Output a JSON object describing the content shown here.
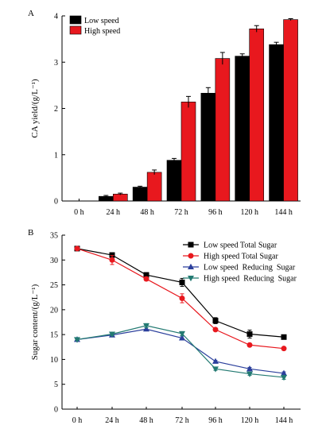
{
  "chart_data": [
    {
      "type": "bar",
      "panel_label": "A",
      "categories": [
        "0 h",
        "24 h",
        "48 h",
        "72 h",
        "96 h",
        "120 h",
        "144 h"
      ],
      "ylabel": "CA yield/(g/L⁻¹)",
      "ylim": [
        0,
        4
      ],
      "yticks": [
        "0",
        "1",
        "2",
        "3",
        "4"
      ],
      "legend_position": "top-left",
      "series": [
        {
          "name": "Low speed",
          "color": "#000000",
          "values": [
            0,
            0.1,
            0.3,
            0.88,
            2.33,
            3.13,
            3.38
          ],
          "errors": [
            0,
            0.02,
            0.02,
            0.04,
            0.12,
            0.05,
            0.05
          ]
        },
        {
          "name": "High speed",
          "color": "#e8181e",
          "values": [
            0,
            0.15,
            0.62,
            2.14,
            3.08,
            3.72,
            3.92
          ],
          "errors": [
            0,
            0.02,
            0.05,
            0.12,
            0.13,
            0.07,
            0.02
          ]
        }
      ]
    },
    {
      "type": "line",
      "panel_label": "B",
      "categories": [
        "0 h",
        "24 h",
        "48 h",
        "72 h",
        "96 h",
        "120 h",
        "144 h"
      ],
      "ylabel": "Sugar content/(g/L⁻¹)",
      "ylim": [
        0,
        35
      ],
      "yticks": [
        "0",
        "5",
        "10",
        "15",
        "20",
        "25",
        "30",
        "35"
      ],
      "legend_position": "top-right",
      "series": [
        {
          "name": "Low speed Total Sugar",
          "color": "#000000",
          "marker": "square",
          "values": [
            32.3,
            31.0,
            27.0,
            25.5,
            17.8,
            15.1,
            14.5
          ],
          "errors": [
            0.3,
            0.3,
            0.4,
            0.8,
            0.6,
            0.8,
            0.4
          ]
        },
        {
          "name": "High speed Total Sugar",
          "color": "#e8181e",
          "marker": "circle",
          "values": [
            32.3,
            30.0,
            26.2,
            22.3,
            16.0,
            12.9,
            12.2
          ],
          "errors": [
            0.3,
            0.9,
            0.4,
            0.9,
            0.3,
            0.2,
            0.2
          ]
        },
        {
          "name": "Low speed  Reducing  Sugar",
          "color": "#2b3f9c",
          "marker": "triangle-up",
          "values": [
            14.0,
            14.9,
            16.1,
            14.3,
            9.6,
            8.1,
            7.2
          ],
          "errors": [
            0.2,
            0.3,
            0.3,
            0.4,
            0.2,
            0.3,
            0.3
          ]
        },
        {
          "name": "High speed  Reducing  Sugar",
          "color": "#237a72",
          "marker": "triangle-down",
          "values": [
            14.0,
            15.1,
            16.8,
            15.2,
            8.1,
            7.1,
            6.4
          ],
          "errors": [
            0.2,
            0.3,
            0.4,
            0.4,
            0.3,
            0.3,
            0.4
          ]
        }
      ]
    }
  ]
}
